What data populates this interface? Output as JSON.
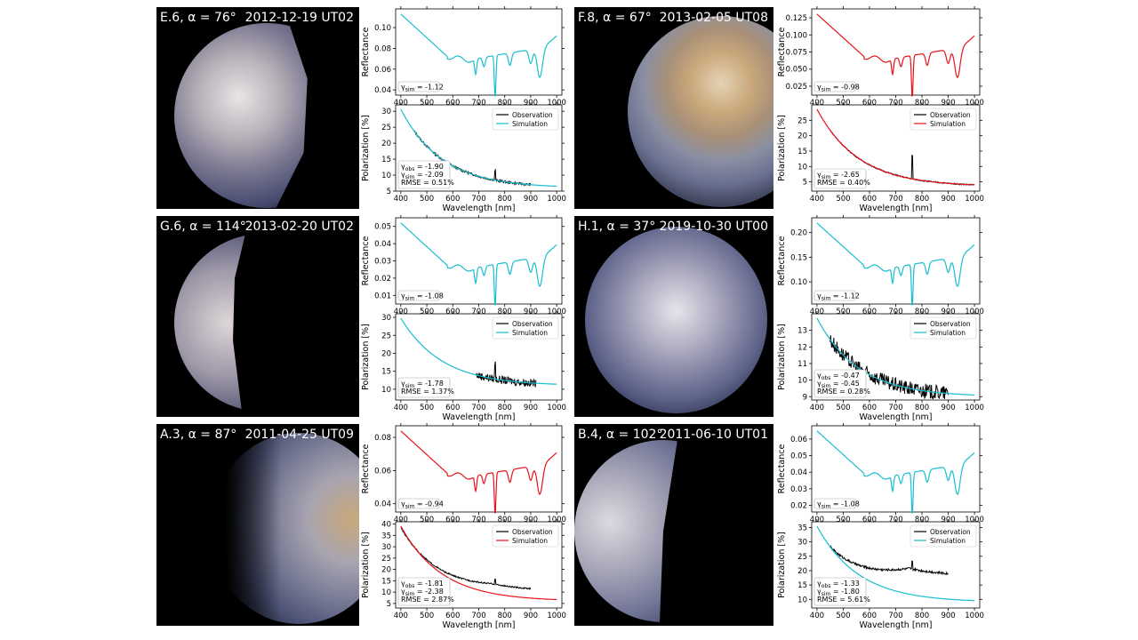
{
  "colors": {
    "black": "#000000",
    "cyan": "#17BECF",
    "red": "#E8121A"
  },
  "panels": [
    {
      "id": "E.6",
      "label": "E.6, α = 76°",
      "date": "2012-12-19 UT02",
      "sim_color": "cyan",
      "reflectance": {
        "ylim": [
          0.035,
          0.118
        ],
        "ticks": [
          0.04,
          0.06,
          0.08,
          0.1
        ],
        "tick_labels": [
          "0.04",
          "0.06",
          "0.08",
          "0.10"
        ],
        "gamma_text": "γsim = -1.12"
      },
      "polarization": {
        "ylim": [
          5,
          32
        ],
        "ticks": [
          5,
          10,
          15,
          20,
          25,
          30
        ],
        "tick_labels": [
          "5",
          "10",
          "15",
          "20",
          "25",
          "30"
        ],
        "obs_range": [
          450,
          900
        ],
        "noise": 0.35,
        "spikes": [
          [
            763,
            3.0
          ]
        ],
        "sim_end": 6,
        "stats": [
          "γobs = -1.90",
          "γsim = -2.09",
          "RMSE = 0.51%"
        ]
      }
    },
    {
      "id": "F.8",
      "label": "F.8, α = 67°",
      "date": "2013-02-05 UT08",
      "sim_color": "red",
      "reflectance": {
        "ylim": [
          0.012,
          0.138
        ],
        "ticks": [
          0.025,
          0.05,
          0.075,
          0.1,
          0.125
        ],
        "tick_labels": [
          "0.025",
          "0.050",
          "0.075",
          "0.100",
          "0.125"
        ],
        "gamma_text": "γsim = -0.98"
      },
      "polarization": {
        "ylim": [
          2,
          30
        ],
        "ticks": [
          5,
          10,
          15,
          20,
          25
        ],
        "tick_labels": [
          "5",
          "10",
          "15",
          "20",
          "25"
        ],
        "obs_range": [
          450,
          1000
        ],
        "noise": 0.2,
        "spikes": [
          [
            763,
            7.5
          ]
        ],
        "sim_end": 3.5,
        "stats": [
          "γsim = -2.65",
          "RMSE = 0.40%"
        ]
      }
    },
    {
      "id": "G.6",
      "label": "G.6, α = 114°",
      "date": "2013-02-20 UT02",
      "sim_color": "cyan",
      "reflectance": {
        "ylim": [
          0.005,
          0.055
        ],
        "ticks": [
          0.01,
          0.02,
          0.03,
          0.04,
          0.05
        ],
        "tick_labels": [
          "0.01",
          "0.02",
          "0.03",
          "0.04",
          "0.05"
        ],
        "gamma_text": "γsim = -1.08"
      },
      "polarization": {
        "ylim": [
          7,
          31
        ],
        "ticks": [
          10,
          15,
          20,
          25,
          30
        ],
        "tick_labels": [
          "10",
          "15",
          "20",
          "25",
          "30"
        ],
        "obs_range": [
          690,
          920
        ],
        "noise": 1.1,
        "spikes": [
          [
            763,
            4.5
          ]
        ],
        "sim_end": 11,
        "stats": [
          "γsim = -1.78",
          "RMSE = 1.37%"
        ]
      }
    },
    {
      "id": "H.1",
      "label": "H.1, α = 37°",
      "date": "2019-10-30 UT00",
      "sim_color": "cyan",
      "reflectance": {
        "ylim": [
          0.055,
          0.23
        ],
        "ticks": [
          0.1,
          0.15,
          0.2
        ],
        "tick_labels": [
          "0.10",
          "0.15",
          "0.20"
        ],
        "gamma_text": "γsim = -1.12"
      },
      "polarization": {
        "ylim": [
          8.8,
          14
        ],
        "ticks": [
          9,
          10,
          11,
          12,
          13
        ],
        "tick_labels": [
          "9",
          "10",
          "11",
          "12",
          "13"
        ],
        "obs_range": [
          450,
          900
        ],
        "noise": 0.45,
        "spikes": [],
        "sim_end": 9,
        "stats": [
          "γobs = -0.47",
          "γsim = -0.45",
          "RMSE = 0.28%"
        ]
      }
    },
    {
      "id": "A.3",
      "label": "A.3, α = 87°",
      "date": "2011-04-25 UT09",
      "sim_color": "red",
      "reflectance": {
        "ylim": [
          0.035,
          0.087
        ],
        "ticks": [
          0.04,
          0.06,
          0.08
        ],
        "tick_labels": [
          "0.04",
          "0.06",
          "0.08"
        ],
        "gamma_text": "γsim = -0.94"
      },
      "polarization": {
        "ylim": [
          3,
          41
        ],
        "ticks": [
          5,
          10,
          15,
          20,
          25,
          30,
          35,
          40
        ],
        "tick_labels": [
          "5",
          "10",
          "15",
          "20",
          "25",
          "30",
          "35",
          "40"
        ],
        "obs_range": [
          400,
          900
        ],
        "noise": 0.3,
        "spikes": [
          [
            763,
            2.5
          ]
        ],
        "sim_end": 6,
        "obs_end": 11.5,
        "stats": [
          "γobs = -1.81",
          "γsim = -2.38",
          "RMSE = 2.87%"
        ]
      }
    },
    {
      "id": "B.4",
      "label": "B.4, α = 102°",
      "date": "2011-06-10 UT01",
      "sim_color": "cyan",
      "reflectance": {
        "ylim": [
          0.016,
          0.068
        ],
        "ticks": [
          0.02,
          0.03,
          0.04,
          0.05,
          0.06
        ],
        "tick_labels": [
          "0.02",
          "0.03",
          "0.04",
          "0.05",
          "0.06"
        ],
        "gamma_text": "γsim = -1.08"
      },
      "polarization": {
        "ylim": [
          7,
          37
        ],
        "ticks": [
          10,
          15,
          20,
          25,
          30,
          35
        ],
        "tick_labels": [
          "10",
          "15",
          "20",
          "25",
          "30",
          "35"
        ],
        "obs_range": [
          450,
          900
        ],
        "noise": 0.4,
        "spikes": [
          [
            763,
            2.5
          ]
        ],
        "sim_end": 9,
        "obs_end": 19,
        "stats": [
          "γobs = -1.33",
          "γsim = -1.80",
          "RMSE = 5.61%"
        ]
      }
    }
  ],
  "axis": {
    "xticks": [
      400,
      500,
      600,
      700,
      800,
      900,
      1000
    ],
    "xlabel": "Wavelength [nm]",
    "refl_ylabel": "Reflectance",
    "pol_ylabel": "Polarization [%]"
  },
  "legend": {
    "observation": "Observation",
    "simulation": "Simulation"
  },
  "chart_data": {
    "type": "line",
    "x_axis": {
      "label": "Wavelength [nm]",
      "range": [
        400,
        1000
      ]
    },
    "series_names": [
      "Observation",
      "Simulation"
    ],
    "note": "Six panels, each with reflectance (simulation) and polarization (observation vs simulation) spectra."
  }
}
